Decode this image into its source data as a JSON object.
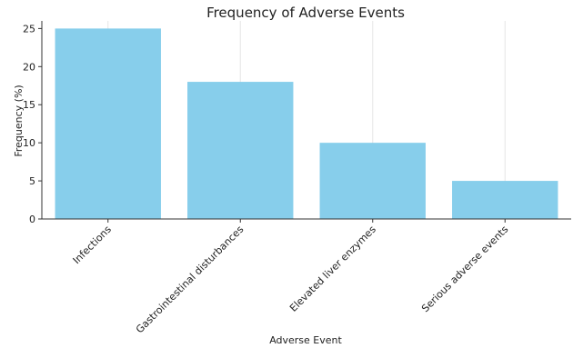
{
  "chart_data": {
    "type": "bar",
    "title": "Frequency of Adverse Events",
    "xlabel": "Adverse Event",
    "ylabel": "Frequency (%)",
    "categories": [
      "Infections",
      "Gastrointestinal disturbances",
      "Elevated liver enzymes",
      "Serious adverse events"
    ],
    "values": [
      25,
      18,
      10,
      5
    ],
    "ylim": [
      0,
      26
    ],
    "yticks": [
      0,
      5,
      10,
      15,
      20,
      25
    ],
    "grid": "vertical",
    "bar_color": "#87ceeb"
  }
}
